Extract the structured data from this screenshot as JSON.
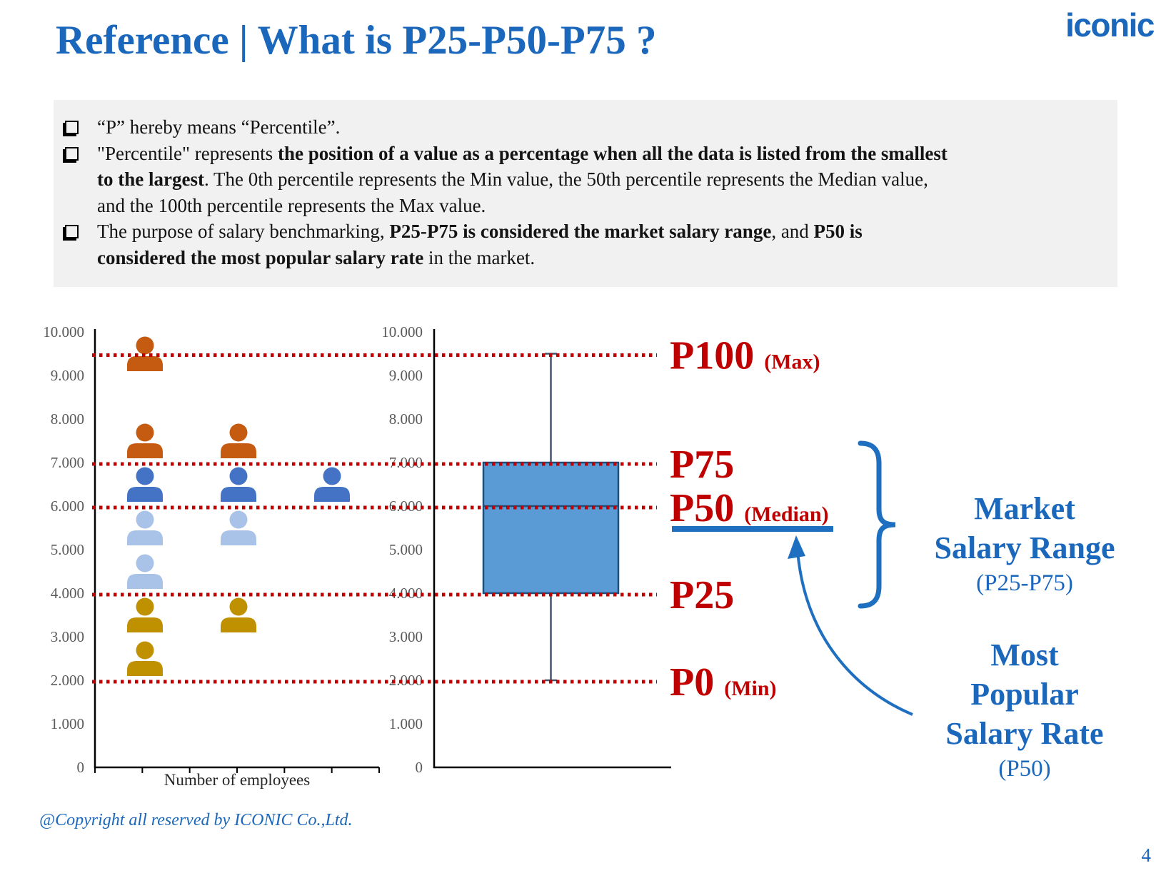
{
  "page": {
    "title": "Reference | What is P25-P50-P75 ?",
    "logo": "iconic",
    "footer": "@Copyright all reserved by ICONIC Co.,Ltd.",
    "page_number": "4"
  },
  "info_box": {
    "bullets": [
      {
        "segments": [
          {
            "text": "“P” hereby means “Percentile”."
          }
        ]
      },
      {
        "segments": [
          {
            "text": "\"Percentile\" represents "
          },
          {
            "text": "the position of a value as a percentage when all the data is listed from the smallest",
            "bold": true
          },
          {
            "br": true
          },
          {
            "text": "to the largest",
            "bold": true
          },
          {
            "text": ". The 0th percentile represents the Min value, the 50th percentile represents the Median value,"
          },
          {
            "br": true
          },
          {
            "text": "and the 100th percentile represents the Max value."
          }
        ]
      },
      {
        "segments": [
          {
            "text": "The purpose of salary benchmarking, "
          },
          {
            "text": "P25-P75 is considered the market salary range",
            "bold": true
          },
          {
            "text": ", and "
          },
          {
            "text": "P50 is",
            "bold": true
          },
          {
            "br": true
          },
          {
            "text": "considered the most popular salary rate",
            "bold": true
          },
          {
            "text": " in the market."
          }
        ]
      }
    ]
  },
  "chart_data": [
    {
      "type": "scatter",
      "title": "",
      "xlabel": "Number of employees",
      "ylabel": "",
      "ylim": [
        0,
        10000
      ],
      "ytick_labels": [
        "10.000",
        "9.000",
        "8.000",
        "7.000",
        "6.000",
        "5.000",
        "4.000",
        "3.000",
        "2.000",
        "1.000",
        "0"
      ],
      "x_axis_segments": 6,
      "icon": "person",
      "points": [
        {
          "salary": 9500,
          "count": 1,
          "color": "#C55A11"
        },
        {
          "salary": 7500,
          "count": 2,
          "color": "#C55A11"
        },
        {
          "salary": 6500,
          "count": 3,
          "color": "#4472C4"
        },
        {
          "salary": 5500,
          "count": 2,
          "color": "#A9C2E8"
        },
        {
          "salary": 4500,
          "count": 1,
          "color": "#A9C2E8"
        },
        {
          "salary": 3500,
          "count": 2,
          "color": "#BF9000"
        },
        {
          "salary": 2500,
          "count": 1,
          "color": "#BF9000"
        }
      ]
    },
    {
      "type": "boxplot",
      "ylim": [
        0,
        10000
      ],
      "ytick_labels": [
        "10.000",
        "9.000",
        "8.000",
        "7.000",
        "6.000",
        "5.000",
        "4.000",
        "3.000",
        "2.000",
        "1.000",
        "0"
      ],
      "min": 2000,
      "q1": 4000,
      "median": 6000,
      "q3": 7000,
      "max": 9500,
      "box_fill": "#5B9BD5",
      "box_border": "#1F4E79",
      "whisker_color": "#44546A"
    },
    {
      "type": "reference-lines",
      "lines": [
        {
          "label": "P100",
          "sublabel": "(Max)",
          "value": 9500
        },
        {
          "label": "P75",
          "sublabel": "",
          "value": 7000
        },
        {
          "label": "P50",
          "sublabel": "(Median)",
          "value": 6000
        },
        {
          "label": "P25",
          "sublabel": "",
          "value": 4000
        },
        {
          "label": "P0",
          "sublabel": "(Min)",
          "value": 2000
        }
      ]
    }
  ],
  "annotations": {
    "market_range": {
      "lines": [
        "Market",
        "Salary Range"
      ],
      "sub": "(P25-P75)"
    },
    "most_popular": {
      "lines": [
        "Most",
        "Popular",
        "Salary Rate"
      ],
      "sub": "(P50)"
    }
  },
  "colors": {
    "title_blue": "#1A67BC",
    "shape_blue": "#1E6FBF",
    "dark_red": "#C00000",
    "box_fill": "#5B9BD5",
    "box_border": "#1F4E79",
    "whisker": "#44546A",
    "person_orange": "#C55A11",
    "person_blue": "#4472C4",
    "person_light_blue": "#A9C2E8",
    "person_gold": "#BF9000",
    "info_box_bg": "#F1F1F1",
    "axis_label_gray": "#595959"
  }
}
